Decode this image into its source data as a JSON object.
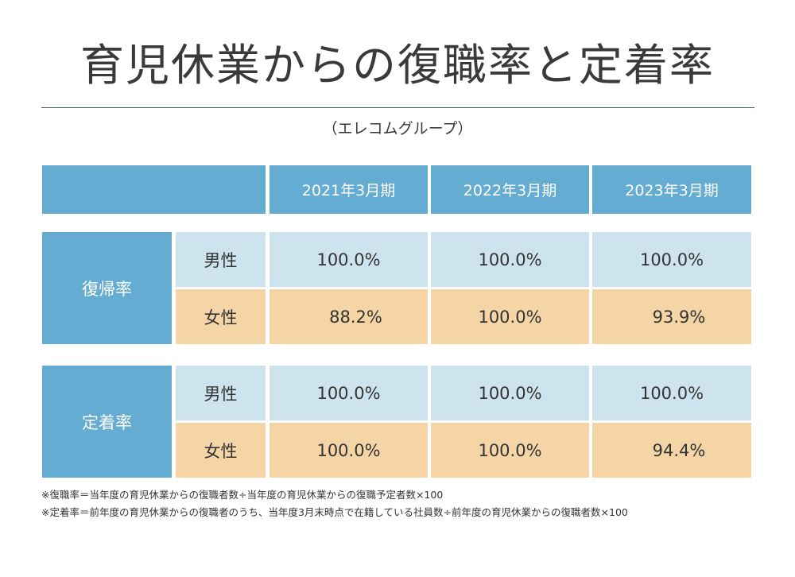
{
  "title": "育児休業からの復職率と定着率",
  "subtitle": "（エレコムグループ）",
  "columns": [
    "2021年3月期",
    "2022年3月期",
    "2023年3月期"
  ],
  "sections": [
    {
      "label": "復帰率",
      "rows": [
        {
          "label": "男性",
          "values": [
            "100.0%",
            "100.0%",
            "100.0%"
          ]
        },
        {
          "label": "女性",
          "values": [
            "88.2%",
            "100.0%",
            "93.9%"
          ]
        }
      ]
    },
    {
      "label": "定着率",
      "rows": [
        {
          "label": "男性",
          "values": [
            "100.0%",
            "100.0%",
            "100.0%"
          ]
        },
        {
          "label": "女性",
          "values": [
            "100.0%",
            "100.0%",
            "94.4%"
          ]
        }
      ]
    }
  ],
  "notes": [
    "※復職率＝当年度の育児休業からの復職者数÷当年度の育児休業からの復職予定者数×100",
    "※定着率＝前年度の育児休業からの復職者のうち、当年度3月末時点で在籍している社員数÷前年度の育児休業からの復職者数×100"
  ],
  "colors": {
    "header": "#64acd2",
    "male_row": "#cde4ef",
    "female_row": "#f5d5a6",
    "rule": "#2f5f72"
  }
}
